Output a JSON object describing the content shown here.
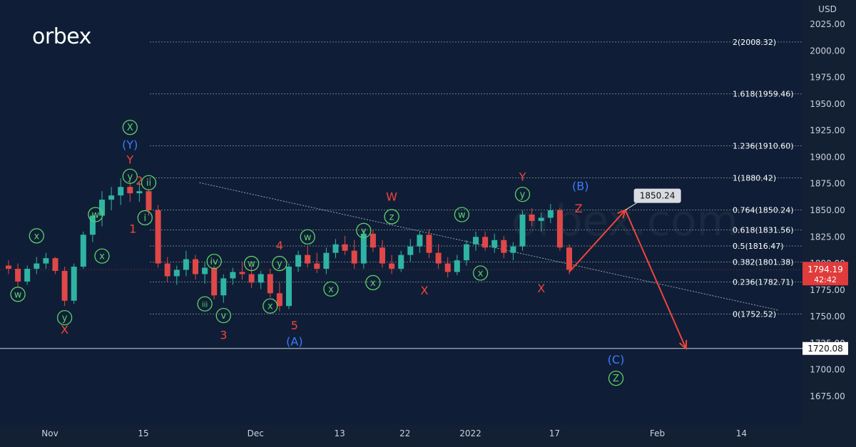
{
  "brand": {
    "logo_text": "orbex",
    "watermark_text": "orbex.com"
  },
  "colors": {
    "background": "#0f1e36",
    "up_candle": "#2fb4a3",
    "down_candle": "#e04848",
    "wave_red": "#f0453a",
    "wave_blue": "#3d7bff",
    "wave_green": "#5fd068",
    "price_badge": "#e13c3c",
    "fib_line": "#8c95a3"
  },
  "chart_data": {
    "type": "candlestick",
    "currency_label": "USD",
    "y_axis": {
      "range": [
        1660,
        2035
      ],
      "ticks": [
        "2025.00",
        "2000.00",
        "1975.00",
        "1950.00",
        "1925.00",
        "1900.00",
        "1875.00",
        "1850.00",
        "1825.00",
        "1800.00",
        "1775.00",
        "1750.00",
        "1725.00",
        "1700.00",
        "1675.00"
      ]
    },
    "x_axis": {
      "ticks": [
        {
          "label": "Nov",
          "bar": 0
        },
        {
          "label": "15",
          "bar": 10
        },
        {
          "label": "Dec",
          "bar": 22
        },
        {
          "label": "13",
          "bar": 31
        },
        {
          "label": "22",
          "bar": 38
        },
        {
          "label": "2022",
          "bar": 45
        },
        {
          "label": "17",
          "bar": 54
        },
        {
          "label": "Feb",
          "bar": 65
        },
        {
          "label": "14",
          "bar": 74
        }
      ]
    },
    "current_price": {
      "label": "1794.19",
      "countdown": "42:42",
      "value": 1794.19
    },
    "support_line": {
      "label": "1720.08",
      "value": 1720.08
    },
    "fib_levels": [
      {
        "label": "2(2008.32)",
        "value": 2008.32
      },
      {
        "label": "1.618(1959.46)",
        "value": 1959.46
      },
      {
        "label": "1.236(1910.60)",
        "value": 1910.6
      },
      {
        "label": "1(1880.42)",
        "value": 1880.42
      },
      {
        "label": "0.764(1850.24)",
        "value": 1850.24
      },
      {
        "label": "0.618(1831.56)",
        "value": 1831.56
      },
      {
        "label": "0.5(1816.47)",
        "value": 1816.47
      },
      {
        "label": "0.382(1801.38)",
        "value": 1801.38
      },
      {
        "label": "0.236(1782.71)",
        "value": 1782.71
      },
      {
        "label": "0(1752.52)",
        "value": 1752.52
      }
    ],
    "target_badge": {
      "label": "1850.24",
      "value": 1850.24
    },
    "trendline": {
      "from": {
        "bar": 16,
        "price": 1876
      },
      "to": {
        "bar": 78,
        "price": 1756
      }
    },
    "projection": [
      {
        "bar": 60,
        "price": 1792
      },
      {
        "bar": 66,
        "price": 1850.24
      },
      {
        "bar": 72.5,
        "price": 1720
      }
    ],
    "candles": [
      {
        "o": 1798,
        "h": 1803,
        "l": 1790,
        "c": 1795
      },
      {
        "o": 1795,
        "h": 1800,
        "l": 1778,
        "c": 1783
      },
      {
        "o": 1783,
        "h": 1798,
        "l": 1780,
        "c": 1795
      },
      {
        "o": 1795,
        "h": 1806,
        "l": 1790,
        "c": 1800
      },
      {
        "o": 1800,
        "h": 1810,
        "l": 1795,
        "c": 1805
      },
      {
        "o": 1805,
        "h": 1806,
        "l": 1790,
        "c": 1793
      },
      {
        "o": 1793,
        "h": 1797,
        "l": 1760,
        "c": 1765
      },
      {
        "o": 1765,
        "h": 1800,
        "l": 1762,
        "c": 1797
      },
      {
        "o": 1797,
        "h": 1830,
        "l": 1795,
        "c": 1827
      },
      {
        "o": 1827,
        "h": 1848,
        "l": 1820,
        "c": 1845
      },
      {
        "o": 1845,
        "h": 1868,
        "l": 1835,
        "c": 1860
      },
      {
        "o": 1860,
        "h": 1872,
        "l": 1850,
        "c": 1864
      },
      {
        "o": 1864,
        "h": 1880,
        "l": 1855,
        "c": 1872
      },
      {
        "o": 1872,
        "h": 1877,
        "l": 1858,
        "c": 1866
      },
      {
        "o": 1866,
        "h": 1876,
        "l": 1858,
        "c": 1868
      },
      {
        "o": 1868,
        "h": 1870,
        "l": 1845,
        "c": 1850
      },
      {
        "o": 1850,
        "h": 1855,
        "l": 1796,
        "c": 1800
      },
      {
        "o": 1800,
        "h": 1806,
        "l": 1783,
        "c": 1788
      },
      {
        "o": 1788,
        "h": 1798,
        "l": 1780,
        "c": 1794
      },
      {
        "o": 1794,
        "h": 1812,
        "l": 1788,
        "c": 1804
      },
      {
        "o": 1804,
        "h": 1808,
        "l": 1785,
        "c": 1790
      },
      {
        "o": 1790,
        "h": 1801,
        "l": 1781,
        "c": 1796
      },
      {
        "o": 1796,
        "h": 1798,
        "l": 1766,
        "c": 1770
      },
      {
        "o": 1770,
        "h": 1790,
        "l": 1763,
        "c": 1786
      },
      {
        "o": 1786,
        "h": 1796,
        "l": 1780,
        "c": 1792
      },
      {
        "o": 1792,
        "h": 1801,
        "l": 1785,
        "c": 1790
      },
      {
        "o": 1790,
        "h": 1798,
        "l": 1777,
        "c": 1782
      },
      {
        "o": 1782,
        "h": 1793,
        "l": 1776,
        "c": 1790
      },
      {
        "o": 1790,
        "h": 1795,
        "l": 1768,
        "c": 1772
      },
      {
        "o": 1772,
        "h": 1782,
        "l": 1755,
        "c": 1760
      },
      {
        "o": 1760,
        "h": 1800,
        "l": 1757,
        "c": 1797
      },
      {
        "o": 1797,
        "h": 1812,
        "l": 1792,
        "c": 1808
      },
      {
        "o": 1808,
        "h": 1816,
        "l": 1796,
        "c": 1800
      },
      {
        "o": 1800,
        "h": 1810,
        "l": 1791,
        "c": 1795
      },
      {
        "o": 1795,
        "h": 1815,
        "l": 1790,
        "c": 1810
      },
      {
        "o": 1810,
        "h": 1823,
        "l": 1805,
        "c": 1818
      },
      {
        "o": 1818,
        "h": 1826,
        "l": 1808,
        "c": 1812
      },
      {
        "o": 1812,
        "h": 1822,
        "l": 1795,
        "c": 1800
      },
      {
        "o": 1800,
        "h": 1832,
        "l": 1795,
        "c": 1828
      },
      {
        "o": 1828,
        "h": 1832,
        "l": 1811,
        "c": 1815
      },
      {
        "o": 1815,
        "h": 1822,
        "l": 1796,
        "c": 1800
      },
      {
        "o": 1800,
        "h": 1808,
        "l": 1790,
        "c": 1795
      },
      {
        "o": 1795,
        "h": 1812,
        "l": 1792,
        "c": 1808
      },
      {
        "o": 1808,
        "h": 1823,
        "l": 1802,
        "c": 1816
      },
      {
        "o": 1816,
        "h": 1830,
        "l": 1810,
        "c": 1827
      },
      {
        "o": 1827,
        "h": 1832,
        "l": 1805,
        "c": 1810
      },
      {
        "o": 1810,
        "h": 1818,
        "l": 1795,
        "c": 1800
      },
      {
        "o": 1800,
        "h": 1806,
        "l": 1787,
        "c": 1792
      },
      {
        "o": 1792,
        "h": 1808,
        "l": 1789,
        "c": 1803
      },
      {
        "o": 1803,
        "h": 1822,
        "l": 1798,
        "c": 1818
      },
      {
        "o": 1818,
        "h": 1830,
        "l": 1812,
        "c": 1825
      },
      {
        "o": 1825,
        "h": 1830,
        "l": 1812,
        "c": 1815
      },
      {
        "o": 1815,
        "h": 1828,
        "l": 1810,
        "c": 1822
      },
      {
        "o": 1822,
        "h": 1826,
        "l": 1805,
        "c": 1810
      },
      {
        "o": 1810,
        "h": 1820,
        "l": 1803,
        "c": 1816
      },
      {
        "o": 1816,
        "h": 1850,
        "l": 1812,
        "c": 1846
      },
      {
        "o": 1846,
        "h": 1852,
        "l": 1835,
        "c": 1840
      },
      {
        "o": 1840,
        "h": 1848,
        "l": 1830,
        "c": 1843
      },
      {
        "o": 1843,
        "h": 1856,
        "l": 1838,
        "c": 1850
      },
      {
        "o": 1850,
        "h": 1852,
        "l": 1812,
        "c": 1815
      },
      {
        "o": 1815,
        "h": 1818,
        "l": 1790,
        "c": 1794
      }
    ],
    "wave_labels": [
      {
        "text": "X",
        "color": "red",
        "bar": 6,
        "price": 1738
      },
      {
        "text": "Y",
        "color": "red",
        "bar": 13,
        "price": 1898
      },
      {
        "text": "(Y)",
        "color": "blue",
        "bar": 13,
        "price": 1912
      },
      {
        "text": "X",
        "color": "green",
        "circled": true,
        "bar": 13,
        "price": 1928
      },
      {
        "text": "y",
        "color": "green",
        "circled": true,
        "bar": 13,
        "price": 1882
      },
      {
        "text": "2",
        "color": "red",
        "bar": 14,
        "price": 1878
      },
      {
        "text": "ii",
        "color": "green",
        "circled": true,
        "bar": 15,
        "price": 1876
      },
      {
        "text": "i",
        "color": "green",
        "circled": true,
        "bar": 14.6,
        "price": 1843
      },
      {
        "text": "1",
        "color": "red",
        "bar": 13.3,
        "price": 1833
      },
      {
        "text": "w",
        "color": "green",
        "circled": true,
        "bar": 1,
        "price": 1771
      },
      {
        "text": "x",
        "color": "green",
        "circled": true,
        "bar": 3,
        "price": 1826
      },
      {
        "text": "y",
        "color": "green",
        "circled": true,
        "bar": 6,
        "price": 1749
      },
      {
        "text": "w",
        "color": "green",
        "circled": true,
        "bar": 9.3,
        "price": 1846
      },
      {
        "text": "x",
        "color": "green",
        "circled": true,
        "bar": 10,
        "price": 1807
      },
      {
        "text": "iii",
        "color": "green",
        "circled": true,
        "bar": 21,
        "price": 1762
      },
      {
        "text": "iv",
        "color": "green",
        "circled": true,
        "bar": 22,
        "price": 1802
      },
      {
        "text": "v",
        "color": "green",
        "circled": true,
        "bar": 23,
        "price": 1751
      },
      {
        "text": "3",
        "color": "red",
        "bar": 23,
        "price": 1733
      },
      {
        "text": "w",
        "color": "green",
        "circled": true,
        "bar": 26,
        "price": 1800
      },
      {
        "text": "x",
        "color": "green",
        "circled": true,
        "bar": 28,
        "price": 1760
      },
      {
        "text": "y",
        "color": "green",
        "circled": true,
        "bar": 29,
        "price": 1800
      },
      {
        "text": "4",
        "color": "red",
        "bar": 29,
        "price": 1817
      },
      {
        "text": "5",
        "color": "red",
        "bar": 30.6,
        "price": 1742
      },
      {
        "text": "(A)",
        "color": "blue",
        "bar": 30.6,
        "price": 1727
      },
      {
        "text": "w",
        "color": "green",
        "circled": true,
        "bar": 32,
        "price": 1825
      },
      {
        "text": "x",
        "color": "green",
        "circled": true,
        "bar": 34.5,
        "price": 1776
      },
      {
        "text": "y",
        "color": "green",
        "circled": true,
        "bar": 38,
        "price": 1831
      },
      {
        "text": "x",
        "color": "green",
        "circled": true,
        "bar": 39,
        "price": 1782
      },
      {
        "text": "z",
        "color": "green",
        "circled": true,
        "bar": 41,
        "price": 1844
      },
      {
        "text": "W",
        "color": "red",
        "bar": 41,
        "price": 1863
      },
      {
        "text": "X",
        "color": "red",
        "bar": 44.5,
        "price": 1775
      },
      {
        "text": "w",
        "color": "green",
        "circled": true,
        "bar": 48.5,
        "price": 1846
      },
      {
        "text": "x",
        "color": "green",
        "circled": true,
        "bar": 50.5,
        "price": 1791
      },
      {
        "text": "y",
        "color": "green",
        "circled": true,
        "bar": 55,
        "price": 1865
      },
      {
        "text": "Y",
        "color": "red",
        "bar": 55,
        "price": 1882
      },
      {
        "text": "X",
        "color": "red",
        "bar": 57,
        "price": 1777
      },
      {
        "text": "(B)",
        "color": "blue",
        "bar": 61.2,
        "price": 1873
      },
      {
        "text": "Z",
        "color": "red",
        "bar": 61,
        "price": 1852
      },
      {
        "text": "(C)",
        "color": "blue",
        "bar": 65,
        "price": 1710
      },
      {
        "text": "Z",
        "color": "green",
        "circled": true,
        "bar": 65,
        "price": 1692
      }
    ]
  }
}
